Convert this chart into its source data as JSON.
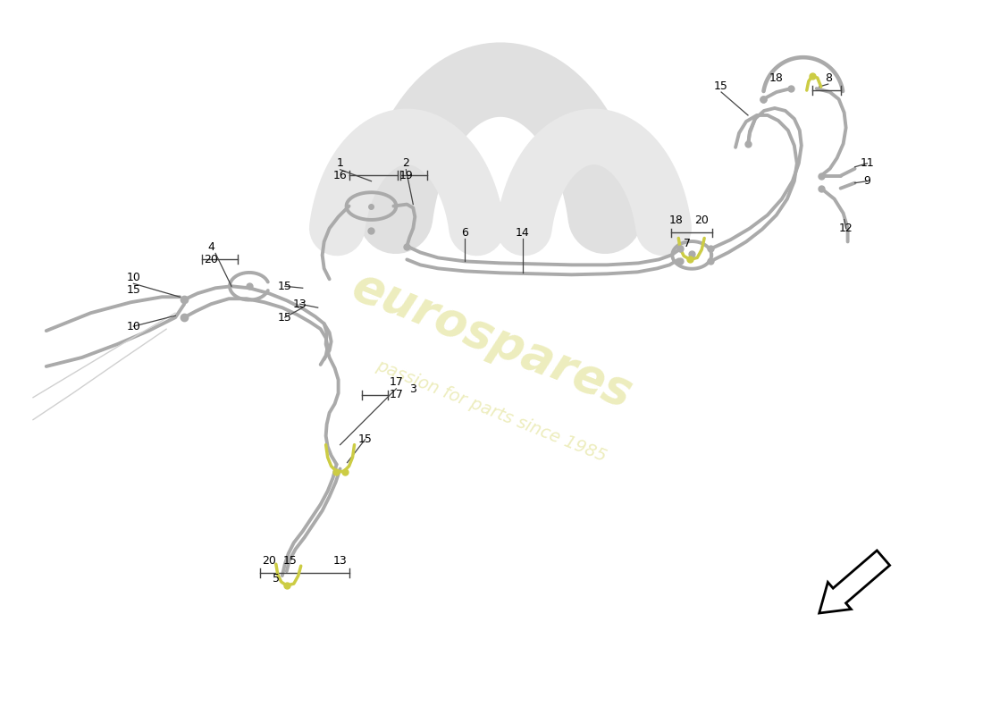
{
  "background_color": "#ffffff",
  "pipe_color": "#aaaaaa",
  "highlight_color": "#cccc44",
  "label_color": "#000000",
  "callout_color": "#444444",
  "watermark_text1": "eurospares",
  "watermark_text2": "passion for parts since 1985",
  "watermark_color": "#cccc44",
  "fig_width": 11.0,
  "fig_height": 8.0
}
